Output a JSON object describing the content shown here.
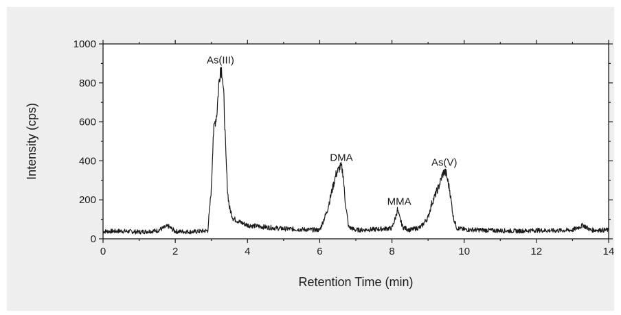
{
  "chart_data": {
    "type": "line",
    "xlabel": "Retention Time (min)",
    "ylabel": "Intensity (cps)",
    "xlim": [
      0,
      14
    ],
    "ylim": [
      0,
      1000
    ],
    "xticks": [
      0,
      2,
      4,
      6,
      8,
      10,
      12,
      14
    ],
    "yticks": [
      0,
      200,
      400,
      600,
      800,
      1000
    ],
    "grid": false,
    "legend": "none",
    "line_color": "#1a1a1a",
    "background_color": "#eeeeee",
    "plot_background_color": "#ffffff",
    "series": [
      {
        "x": [
          0,
          0.5,
          1.0,
          1.5,
          1.8,
          2.0,
          2.5,
          2.9,
          3.0,
          3.05,
          3.1,
          3.15,
          3.2,
          3.25,
          3.3,
          3.35,
          3.4,
          3.45,
          3.5,
          3.6,
          3.8,
          4.0,
          4.5,
          5.0,
          5.5,
          6.0,
          6.2,
          6.35,
          6.45,
          6.55,
          6.6,
          6.65,
          6.7,
          6.8,
          7.0,
          7.5,
          8.0,
          8.1,
          8.15,
          8.2,
          8.3,
          8.5,
          8.8,
          9.0,
          9.1,
          9.2,
          9.3,
          9.4,
          9.45,
          9.5,
          9.6,
          9.7,
          9.8,
          10.0,
          10.5,
          11.0,
          11.5,
          12.0,
          12.5,
          13.0,
          13.3,
          13.5,
          14.0
        ],
        "y": [
          38,
          40,
          35,
          42,
          65,
          38,
          36,
          42,
          260,
          530,
          600,
          640,
          780,
          880,
          860,
          700,
          430,
          240,
          160,
          105,
          85,
          70,
          60,
          52,
          48,
          45,
          140,
          255,
          330,
          365,
          370,
          330,
          200,
          60,
          45,
          48,
          55,
          110,
          150,
          115,
          60,
          45,
          60,
          110,
          180,
          225,
          270,
          330,
          345,
          335,
          250,
          110,
          55,
          48,
          45,
          42,
          40,
          44,
          42,
          45,
          70,
          45,
          45
        ]
      }
    ],
    "annotations": [
      {
        "text": "As(III)",
        "x": 3.25,
        "y": 900
      },
      {
        "text": "DMA",
        "x": 6.6,
        "y": 400
      },
      {
        "text": "MMA",
        "x": 8.2,
        "y": 175
      },
      {
        "text": "As(V)",
        "x": 9.45,
        "y": 375
      }
    ]
  }
}
